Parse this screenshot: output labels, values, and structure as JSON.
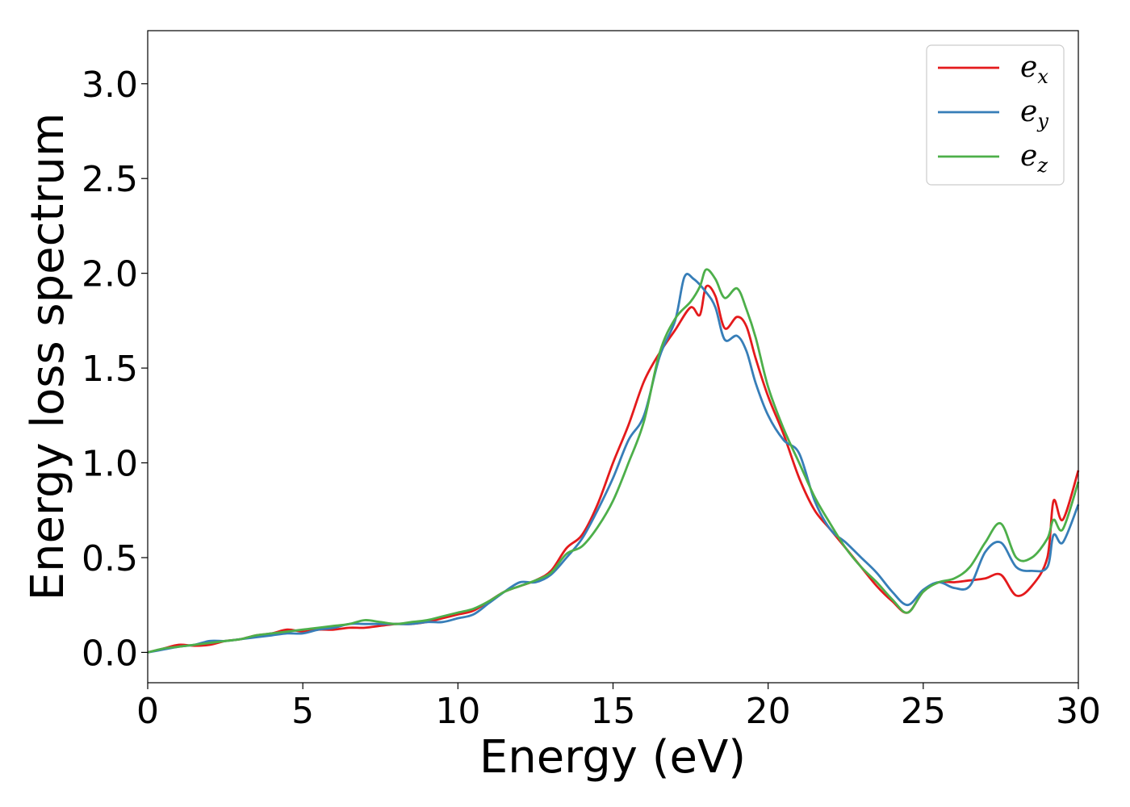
{
  "chart_data": {
    "type": "line",
    "title": "",
    "xlabel": "Energy (eV)",
    "ylabel": "Energy loss spectrum",
    "xlim": [
      0,
      30
    ],
    "ylim": [
      -0.16,
      3.28
    ],
    "xticks": [
      0,
      5,
      10,
      15,
      20,
      25,
      30
    ],
    "xtick_labels": [
      "0",
      "5",
      "10",
      "15",
      "20",
      "25",
      "30"
    ],
    "yticks": [
      0.0,
      0.5,
      1.0,
      1.5,
      2.0,
      2.5,
      3.0
    ],
    "ytick_labels": [
      "0.0",
      "0.5",
      "1.0",
      "1.5",
      "2.0",
      "2.5",
      "3.0"
    ],
    "grid": false,
    "legend_position": "top-right",
    "series": [
      {
        "name": "e",
        "subscript": "x",
        "color": "#e41a1c",
        "points": [
          [
            0,
            0
          ],
          [
            0.5,
            0.02
          ],
          [
            1,
            0.04
          ],
          [
            1.5,
            0.035
          ],
          [
            2,
            0.04
          ],
          [
            2.5,
            0.06
          ],
          [
            3,
            0.07
          ],
          [
            3.5,
            0.09
          ],
          [
            4,
            0.1
          ],
          [
            4.5,
            0.12
          ],
          [
            5,
            0.11
          ],
          [
            5.5,
            0.12
          ],
          [
            6,
            0.12
          ],
          [
            6.5,
            0.13
          ],
          [
            7,
            0.13
          ],
          [
            7.5,
            0.14
          ],
          [
            8,
            0.15
          ],
          [
            8.5,
            0.15
          ],
          [
            9,
            0.16
          ],
          [
            9.5,
            0.18
          ],
          [
            10,
            0.2
          ],
          [
            10.5,
            0.22
          ],
          [
            11,
            0.27
          ],
          [
            11.5,
            0.32
          ],
          [
            12,
            0.35
          ],
          [
            12.5,
            0.38
          ],
          [
            13,
            0.43
          ],
          [
            13.5,
            0.55
          ],
          [
            14,
            0.62
          ],
          [
            14.5,
            0.78
          ],
          [
            15,
            1.0
          ],
          [
            15.5,
            1.2
          ],
          [
            16,
            1.43
          ],
          [
            16.5,
            1.58
          ],
          [
            17,
            1.7
          ],
          [
            17.5,
            1.82
          ],
          [
            17.8,
            1.78
          ],
          [
            18,
            1.93
          ],
          [
            18.3,
            1.88
          ],
          [
            18.6,
            1.71
          ],
          [
            19,
            1.77
          ],
          [
            19.3,
            1.72
          ],
          [
            19.6,
            1.55
          ],
          [
            20,
            1.35
          ],
          [
            20.5,
            1.15
          ],
          [
            21,
            0.92
          ],
          [
            21.5,
            0.75
          ],
          [
            22,
            0.65
          ],
          [
            22.5,
            0.55
          ],
          [
            23,
            0.45
          ],
          [
            23.5,
            0.35
          ],
          [
            24,
            0.27
          ],
          [
            24.5,
            0.21
          ],
          [
            25,
            0.32
          ],
          [
            25.5,
            0.37
          ],
          [
            26,
            0.37
          ],
          [
            26.5,
            0.38
          ],
          [
            27,
            0.39
          ],
          [
            27.5,
            0.41
          ],
          [
            28,
            0.3
          ],
          [
            28.5,
            0.35
          ],
          [
            29,
            0.5
          ],
          [
            29.2,
            0.8
          ],
          [
            29.5,
            0.7
          ],
          [
            30,
            0.96
          ]
        ]
      },
      {
        "name": "e",
        "subscript": "y",
        "color": "#377eb8",
        "points": [
          [
            0,
            0
          ],
          [
            0.5,
            0.015
          ],
          [
            1,
            0.03
          ],
          [
            1.5,
            0.04
          ],
          [
            2,
            0.06
          ],
          [
            2.5,
            0.06
          ],
          [
            3,
            0.07
          ],
          [
            3.5,
            0.08
          ],
          [
            4,
            0.09
          ],
          [
            4.5,
            0.1
          ],
          [
            5,
            0.1
          ],
          [
            5.5,
            0.12
          ],
          [
            6,
            0.13
          ],
          [
            6.5,
            0.15
          ],
          [
            7,
            0.15
          ],
          [
            7.5,
            0.15
          ],
          [
            8,
            0.15
          ],
          [
            8.5,
            0.15
          ],
          [
            9,
            0.16
          ],
          [
            9.5,
            0.16
          ],
          [
            10,
            0.18
          ],
          [
            10.5,
            0.2
          ],
          [
            11,
            0.26
          ],
          [
            11.5,
            0.32
          ],
          [
            12,
            0.37
          ],
          [
            12.5,
            0.37
          ],
          [
            13,
            0.41
          ],
          [
            13.5,
            0.5
          ],
          [
            14,
            0.6
          ],
          [
            14.5,
            0.75
          ],
          [
            15,
            0.92
          ],
          [
            15.5,
            1.12
          ],
          [
            16,
            1.25
          ],
          [
            16.5,
            1.56
          ],
          [
            17,
            1.75
          ],
          [
            17.3,
            1.98
          ],
          [
            17.6,
            1.97
          ],
          [
            18,
            1.9
          ],
          [
            18.3,
            1.82
          ],
          [
            18.6,
            1.65
          ],
          [
            19,
            1.67
          ],
          [
            19.3,
            1.59
          ],
          [
            19.6,
            1.42
          ],
          [
            20,
            1.25
          ],
          [
            20.5,
            1.12
          ],
          [
            21,
            1.05
          ],
          [
            21.5,
            0.8
          ],
          [
            22,
            0.65
          ],
          [
            22.5,
            0.58
          ],
          [
            23,
            0.5
          ],
          [
            23.5,
            0.42
          ],
          [
            24,
            0.32
          ],
          [
            24.5,
            0.25
          ],
          [
            25,
            0.33
          ],
          [
            25.5,
            0.37
          ],
          [
            26,
            0.34
          ],
          [
            26.5,
            0.35
          ],
          [
            27,
            0.53
          ],
          [
            27.5,
            0.58
          ],
          [
            28,
            0.45
          ],
          [
            28.5,
            0.43
          ],
          [
            29,
            0.45
          ],
          [
            29.2,
            0.62
          ],
          [
            29.5,
            0.58
          ],
          [
            30,
            0.78
          ]
        ]
      },
      {
        "name": "e",
        "subscript": "z",
        "color": "#4daf4a",
        "points": [
          [
            0,
            0
          ],
          [
            0.5,
            0.02
          ],
          [
            1,
            0.03
          ],
          [
            1.5,
            0.04
          ],
          [
            2,
            0.05
          ],
          [
            2.5,
            0.06
          ],
          [
            3,
            0.07
          ],
          [
            3.5,
            0.09
          ],
          [
            4,
            0.1
          ],
          [
            4.5,
            0.11
          ],
          [
            5,
            0.12
          ],
          [
            5.5,
            0.13
          ],
          [
            6,
            0.14
          ],
          [
            6.5,
            0.15
          ],
          [
            7,
            0.17
          ],
          [
            7.5,
            0.16
          ],
          [
            8,
            0.15
          ],
          [
            8.5,
            0.16
          ],
          [
            9,
            0.17
          ],
          [
            9.5,
            0.19
          ],
          [
            10,
            0.21
          ],
          [
            10.5,
            0.23
          ],
          [
            11,
            0.27
          ],
          [
            11.5,
            0.32
          ],
          [
            12,
            0.35
          ],
          [
            12.5,
            0.38
          ],
          [
            13,
            0.42
          ],
          [
            13.5,
            0.52
          ],
          [
            14,
            0.56
          ],
          [
            14.5,
            0.66
          ],
          [
            15,
            0.8
          ],
          [
            15.5,
            1.0
          ],
          [
            16,
            1.22
          ],
          [
            16.5,
            1.58
          ],
          [
            17,
            1.76
          ],
          [
            17.5,
            1.85
          ],
          [
            17.8,
            1.93
          ],
          [
            18,
            2.02
          ],
          [
            18.3,
            1.97
          ],
          [
            18.6,
            1.87
          ],
          [
            19,
            1.92
          ],
          [
            19.3,
            1.81
          ],
          [
            19.6,
            1.66
          ],
          [
            20,
            1.4
          ],
          [
            20.5,
            1.18
          ],
          [
            21,
            1.0
          ],
          [
            21.5,
            0.82
          ],
          [
            22,
            0.68
          ],
          [
            22.5,
            0.55
          ],
          [
            23,
            0.45
          ],
          [
            23.5,
            0.37
          ],
          [
            24,
            0.28
          ],
          [
            24.5,
            0.21
          ],
          [
            25,
            0.32
          ],
          [
            25.5,
            0.37
          ],
          [
            26,
            0.39
          ],
          [
            26.5,
            0.45
          ],
          [
            27,
            0.58
          ],
          [
            27.5,
            0.68
          ],
          [
            28,
            0.5
          ],
          [
            28.5,
            0.5
          ],
          [
            29,
            0.6
          ],
          [
            29.2,
            0.7
          ],
          [
            29.5,
            0.65
          ],
          [
            30,
            0.9
          ]
        ]
      }
    ]
  }
}
